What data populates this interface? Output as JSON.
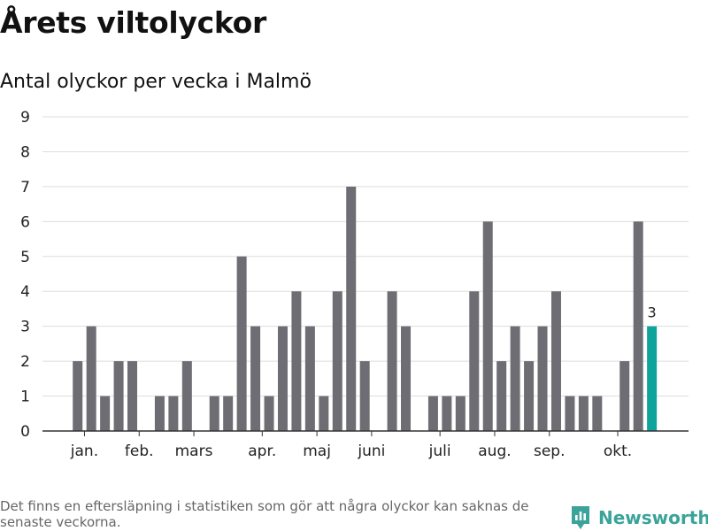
{
  "title": "Årets viltolyckor",
  "subtitle": "Antal olyckor per vecka i Malmö",
  "footnote": "Det finns en eftersläpning i statistiken som gör att några olyckor kan saknas de senaste veckorna.",
  "brand": {
    "name": "Newsworthy",
    "icon": "newsworthy-logo-icon",
    "color": "#3aa39a"
  },
  "colors": {
    "bar": "#6e6d73",
    "highlight": "#0ea39b",
    "grid": "#dddddd",
    "axis": "#333333"
  },
  "chart_data": {
    "type": "bar",
    "ylim": [
      0,
      9
    ],
    "yticks": [
      0,
      1,
      2,
      3,
      4,
      5,
      6,
      7,
      8,
      9
    ],
    "grid": true,
    "weeks": [
      1,
      2,
      3,
      4,
      5,
      6,
      7,
      8,
      9,
      10,
      11,
      12,
      13,
      14,
      15,
      16,
      17,
      18,
      19,
      20,
      21,
      22,
      23,
      24,
      25,
      26,
      27,
      28,
      29,
      30,
      31,
      32,
      33,
      34,
      35,
      36,
      37,
      38,
      39,
      40,
      41,
      42,
      43
    ],
    "values": [
      2,
      3,
      1,
      2,
      2,
      0,
      1,
      1,
      2,
      0,
      1,
      1,
      5,
      3,
      1,
      3,
      4,
      3,
      1,
      4,
      7,
      2,
      0,
      4,
      3,
      0,
      1,
      1,
      1,
      4,
      6,
      2,
      3,
      2,
      3,
      4,
      1,
      1,
      1,
      0,
      2,
      6,
      3
    ],
    "month_labels": [
      {
        "label": "jan.",
        "week": 1.5
      },
      {
        "label": "feb.",
        "week": 5.5
      },
      {
        "label": "mars",
        "week": 9.5
      },
      {
        "label": "apr.",
        "week": 14.5
      },
      {
        "label": "maj",
        "week": 18.5
      },
      {
        "label": "juni",
        "week": 22.5
      },
      {
        "label": "juli",
        "week": 27.5
      },
      {
        "label": "aug.",
        "week": 31.5
      },
      {
        "label": "sep.",
        "week": 35.5
      },
      {
        "label": "okt.",
        "week": 40.5
      }
    ],
    "highlight_last": true,
    "annotations": [
      {
        "week": 43,
        "text": "3"
      }
    ]
  }
}
